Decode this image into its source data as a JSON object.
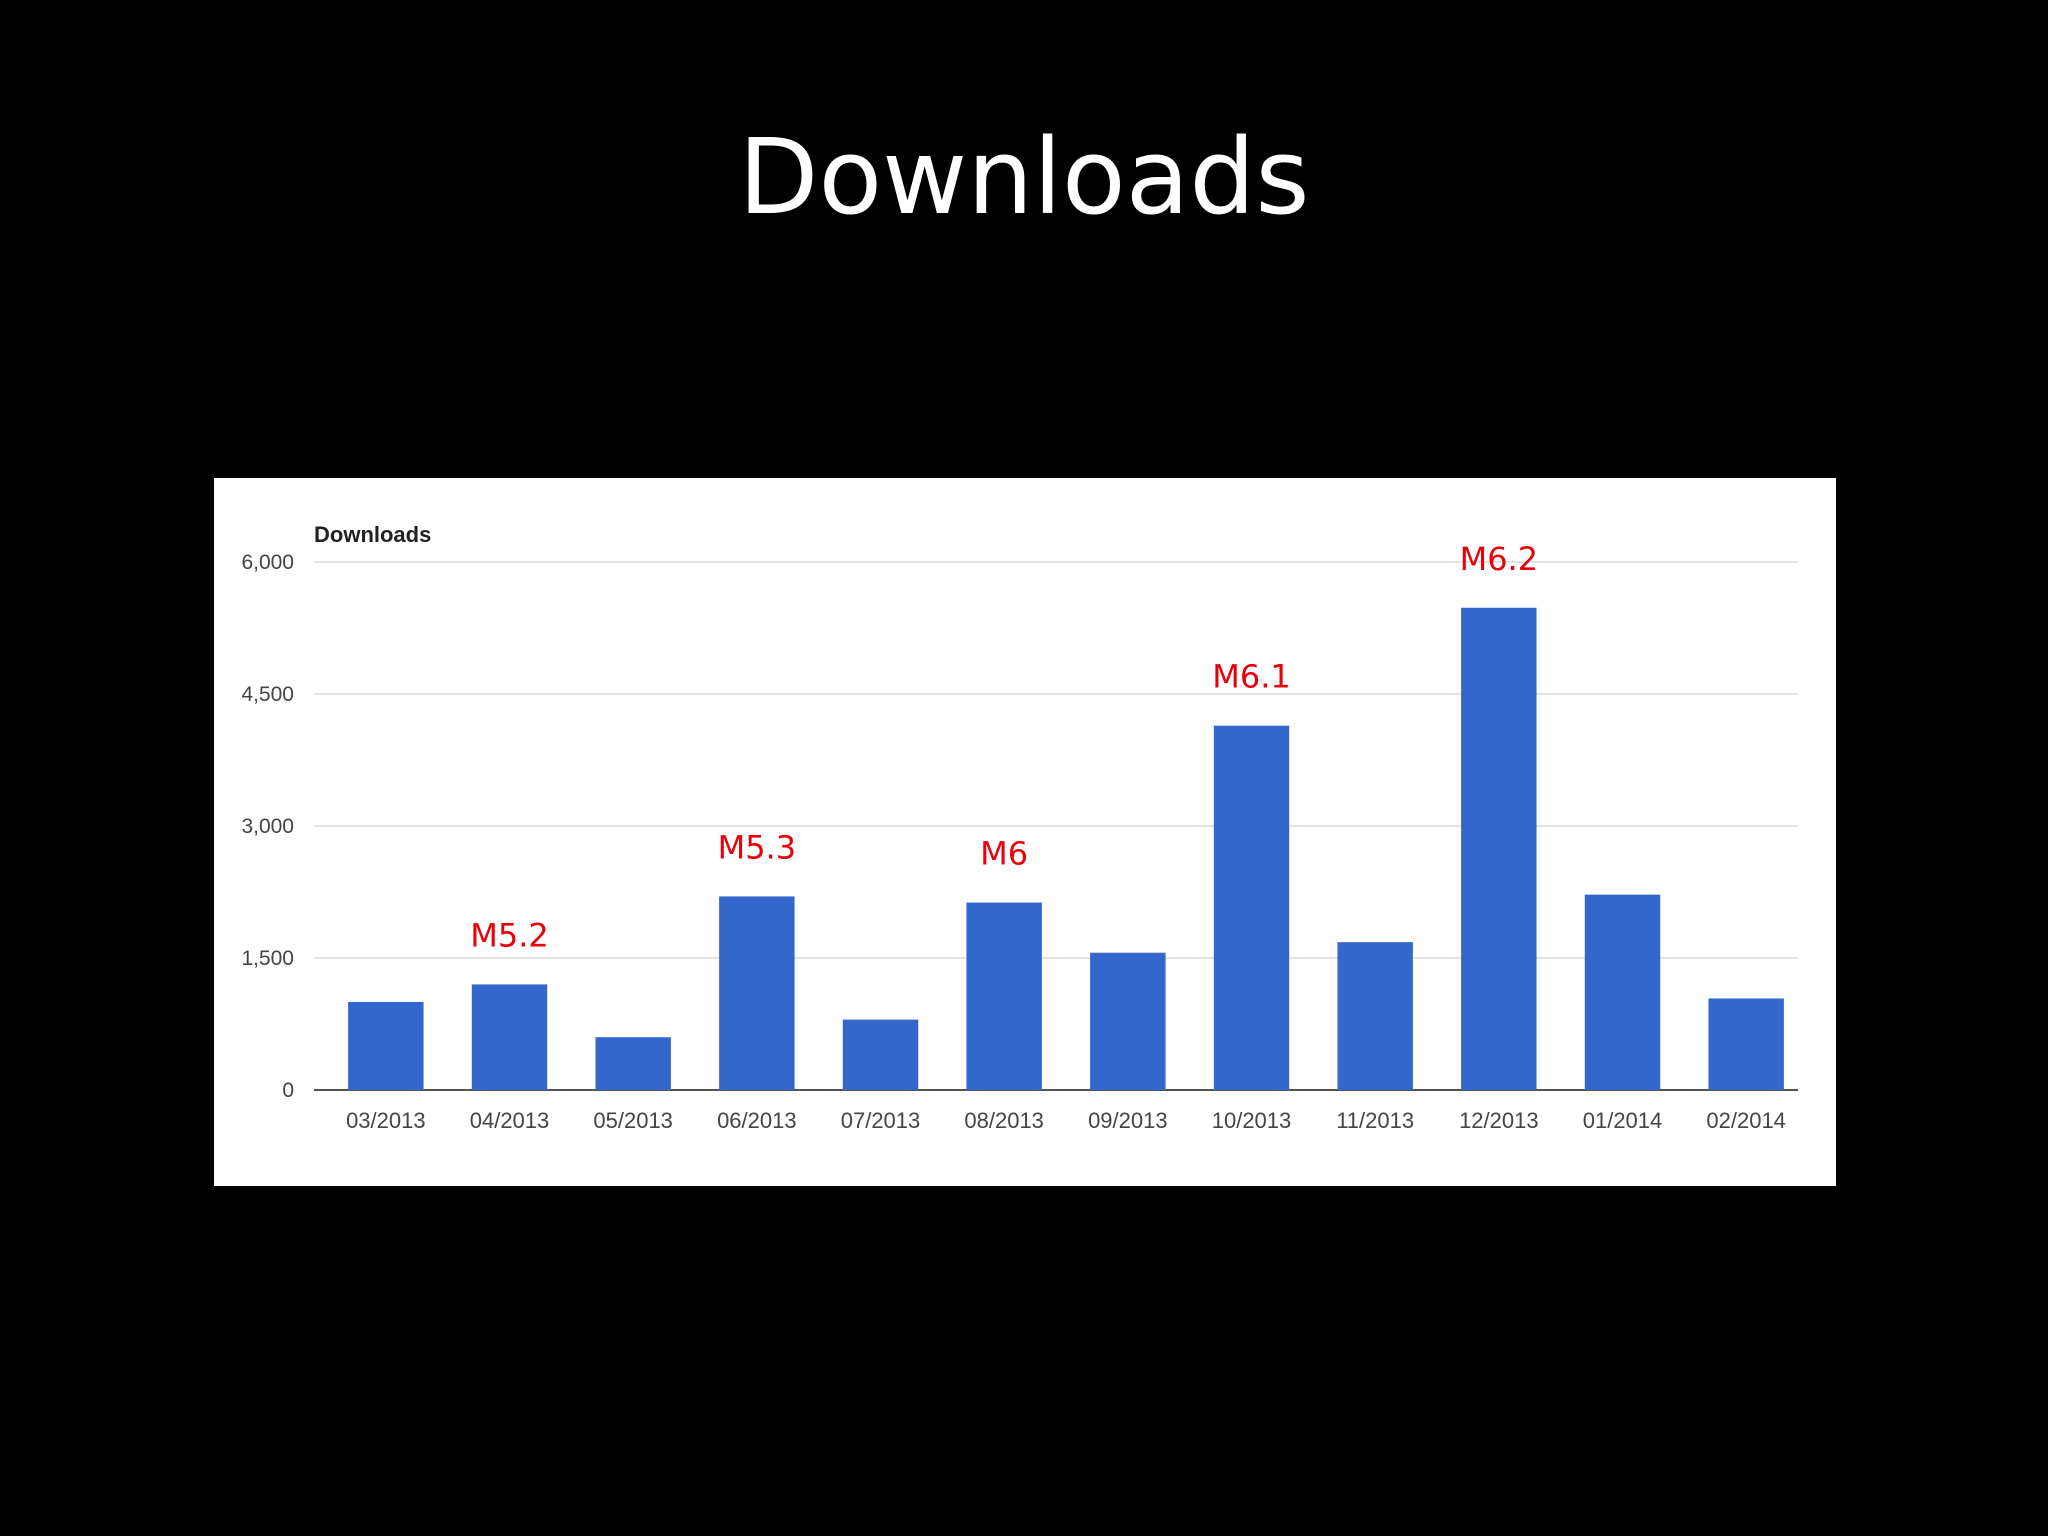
{
  "slide": {
    "title": "Downloads"
  },
  "colors": {
    "background": "#000000",
    "bar": "#3367cc",
    "annotation": "#e8000a",
    "grid": "#e2e2e2",
    "axis_text": "#444444"
  },
  "chart_data": {
    "type": "bar",
    "title": "Downloads",
    "xlabel": "",
    "ylabel": "",
    "categories": [
      "03/2013",
      "04/2013",
      "05/2013",
      "06/2013",
      "07/2013",
      "08/2013",
      "09/2013",
      "10/2013",
      "11/2013",
      "12/2013",
      "01/2014",
      "02/2014"
    ],
    "series": [
      {
        "values": [
          1000,
          1200,
          600,
          2200,
          800,
          2130,
          1560,
          4140,
          1680,
          5480,
          2220,
          1040
        ]
      }
    ],
    "ylim": [
      0,
      6000
    ],
    "yticks": [
      0,
      1500,
      3000,
      4500,
      6000
    ],
    "ytick_labels": [
      "0",
      "1,500",
      "3,000",
      "4,500",
      "6,000"
    ],
    "grid": true,
    "legend": "none",
    "annotations": [
      {
        "category": "04/2013",
        "text": "M5.2"
      },
      {
        "category": "06/2013",
        "text": "M5.3"
      },
      {
        "category": "08/2013",
        "text": "M6"
      },
      {
        "category": "10/2013",
        "text": "M6.1"
      },
      {
        "category": "12/2013",
        "text": "M6.2"
      }
    ]
  }
}
